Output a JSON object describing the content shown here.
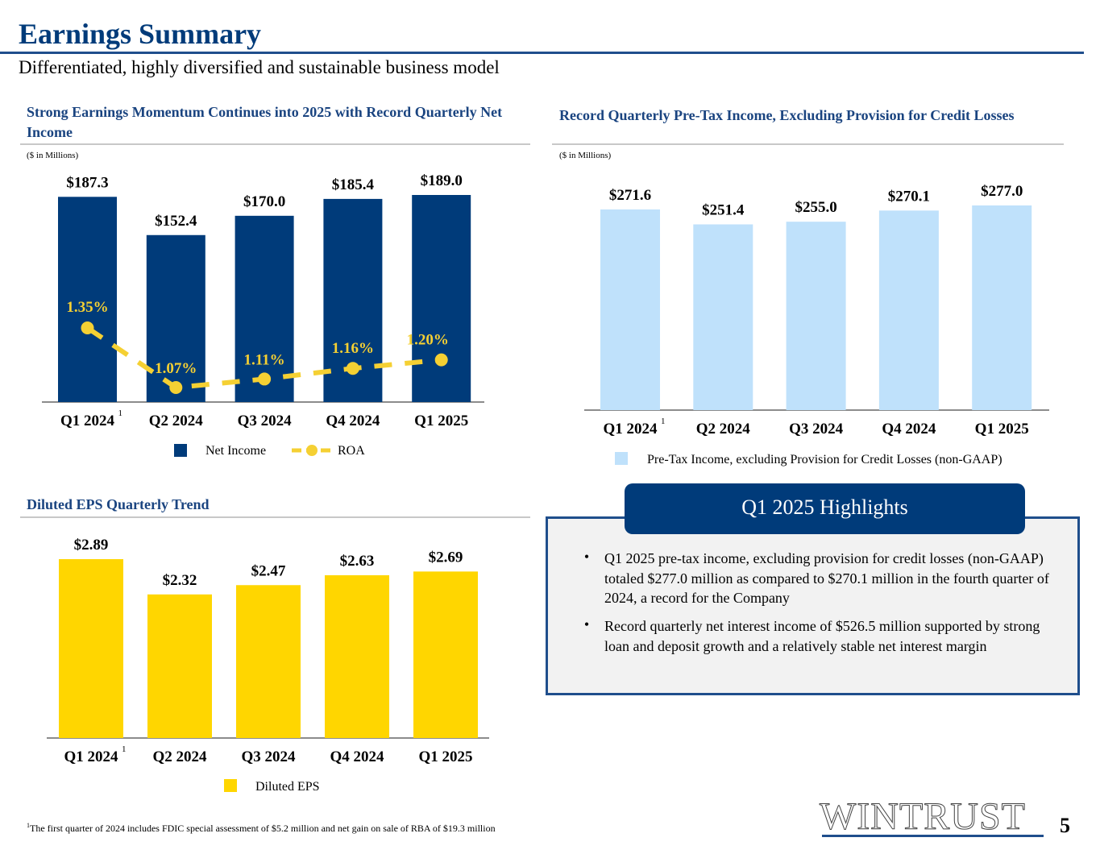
{
  "header": {
    "title": "Earnings Summary",
    "subtitle": "Differentiated, highly diversified and sustainable business model"
  },
  "colors": {
    "navy": "#003b7a",
    "light_blue": "#bfe1fb",
    "gold": "#ffd600",
    "roa_yellow": "#f5d033",
    "title_blue": "#1a4480"
  },
  "chart_data": [
    {
      "id": "net-income",
      "type": "bar",
      "title": "Strong Earnings Momentum Continues into 2025 with Record Quarterly Net Income",
      "units_note": "($ in Millions)",
      "categories": [
        "Q1 2024",
        "Q2 2024",
        "Q3 2024",
        "Q4 2024",
        "Q1 2025"
      ],
      "category_superscripts": [
        "1",
        "",
        "",
        "",
        ""
      ],
      "series": [
        {
          "name": "Net Income",
          "kind": "bar",
          "values": [
            187.3,
            152.4,
            170.0,
            185.4,
            189.0
          ],
          "labels": [
            "$187.3",
            "$152.4",
            "$170.0",
            "$185.4",
            "$189.0"
          ]
        },
        {
          "name": "ROA",
          "kind": "line-dashed",
          "values": [
            1.35,
            1.07,
            1.11,
            1.16,
            1.2
          ],
          "labels": [
            "1.35%",
            "1.07%",
            "1.11%",
            "1.16%",
            "1.20%"
          ]
        }
      ],
      "legend": [
        "Net Income",
        "ROA"
      ],
      "legend_position": "bottom",
      "grid": false
    },
    {
      "id": "pretax-income",
      "type": "bar",
      "title": "Record Quarterly Pre-Tax Income, Excluding Provision for Credit Losses",
      "units_note": "($ in Millions)",
      "categories": [
        "Q1 2024",
        "Q2 2024",
        "Q3 2024",
        "Q4 2024",
        "Q1 2025"
      ],
      "category_superscripts": [
        "1",
        "",
        "",
        "",
        ""
      ],
      "series": [
        {
          "name": "Pre-Tax Income, excluding Provision for Credit Losses (non-GAAP)",
          "kind": "bar",
          "values": [
            271.6,
            251.4,
            255.0,
            270.1,
            277.0
          ],
          "labels": [
            "$271.6",
            "$251.4",
            "$255.0",
            "$270.1",
            "$277.0"
          ]
        }
      ],
      "legend": [
        "Pre-Tax Income, excluding Provision for Credit Losses (non-GAAP)"
      ],
      "legend_position": "bottom",
      "grid": false
    },
    {
      "id": "diluted-eps",
      "type": "bar",
      "title": "Diluted EPS Quarterly Trend",
      "categories": [
        "Q1 2024",
        "Q2 2024",
        "Q3 2024",
        "Q4 2024",
        "Q1 2025"
      ],
      "category_superscripts": [
        "1",
        "",
        "",
        "",
        ""
      ],
      "series": [
        {
          "name": "Diluted EPS",
          "kind": "bar",
          "values": [
            2.89,
            2.32,
            2.47,
            2.63,
            2.69
          ],
          "labels": [
            "$2.89",
            "$2.32",
            "$2.47",
            "$2.63",
            "$2.69"
          ]
        }
      ],
      "legend": [
        "Diluted EPS"
      ],
      "legend_position": "bottom",
      "grid": false
    }
  ],
  "highlights": {
    "title": "Q1 2025 Highlights",
    "bullet_symbol": "•",
    "items": [
      "Q1 2025 pre-tax income, excluding provision for credit losses (non-GAAP) totaled $277.0 million as compared to $270.1 million in the fourth quarter of 2024, a record for the Company",
      "Record quarterly net interest income of $526.5 million supported by strong loan and deposit growth and a relatively stable net interest margin"
    ]
  },
  "footer": {
    "footnote_marker": "1",
    "footnote": "The first quarter of 2024 includes FDIC special assessment of $5.2 million and net gain on sale of RBA of $19.3 million",
    "logo_text": "WINTRUST",
    "page_number": "5"
  }
}
